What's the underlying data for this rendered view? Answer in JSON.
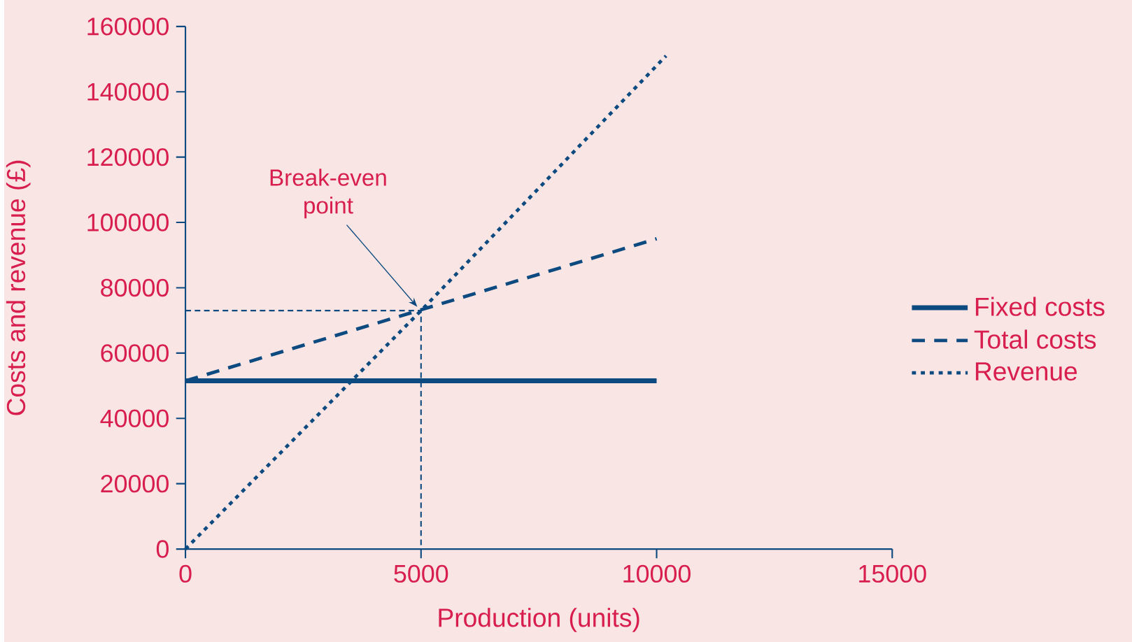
{
  "chart_data": {
    "type": "line",
    "xlabel": "Production (units)",
    "ylabel": "Costs and revenue (£)",
    "series": [
      {
        "name": "Fixed costs",
        "color": "#0d4a80",
        "line_style": "solid",
        "x": [
          0,
          10000
        ],
        "values": [
          51500,
          51500
        ]
      },
      {
        "name": "Total costs",
        "color": "#0d4a80",
        "line_style": "dashed",
        "x": [
          0,
          10000
        ],
        "values": [
          51500,
          95000
        ]
      },
      {
        "name": "Revenue",
        "color": "#0d4a80",
        "line_style": "dotted",
        "x": [
          0,
          5000,
          10200
        ],
        "values": [
          0,
          73000,
          151000
        ]
      },
      {
        "color": "#0d4a80",
        "line_style": "dashed",
        "x": [
          0,
          5000,
          5000
        ],
        "values": [
          73000,
          73000,
          0
        ]
      }
    ],
    "annotations": [
      {
        "text": "Break-even point",
        "x": 5000,
        "y": 73000
      }
    ],
    "xlim": [
      0,
      15000
    ],
    "ylim": [
      0,
      160000
    ],
    "xticks": [
      0,
      5000,
      10000,
      15000
    ],
    "yticks": [
      0,
      20000,
      40000,
      60000,
      80000,
      100000,
      120000,
      140000,
      160000
    ],
    "grid": false,
    "legend": "right",
    "marker": "none"
  }
}
